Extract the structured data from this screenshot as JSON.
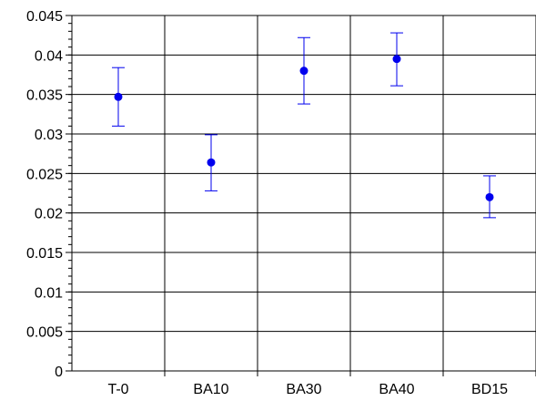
{
  "chart_data": {
    "type": "scatter",
    "title": "",
    "xlabel": "",
    "ylabel": "",
    "categories": [
      "T-0",
      "BA10",
      "BA30",
      "BA40",
      "BD15"
    ],
    "series": [
      {
        "values": [
          0.0347,
          0.0264,
          0.038,
          0.0395,
          0.022
        ],
        "error_low": [
          0.031,
          0.0228,
          0.0338,
          0.0361,
          0.0194
        ],
        "error_high": [
          0.0384,
          0.0299,
          0.0422,
          0.0428,
          0.0247
        ]
      }
    ],
    "ylim": [
      0,
      0.045
    ],
    "yticks": [
      "0",
      "0.005",
      "0.01",
      "0.015",
      "0.02",
      "0.025",
      "0.03",
      "0.035",
      "0.04",
      "0.045"
    ],
    "grid": true,
    "colors": {
      "marker": "#0000ee",
      "errorbar": "#0000ee",
      "grid": "#000000",
      "axis": "#000000"
    }
  }
}
